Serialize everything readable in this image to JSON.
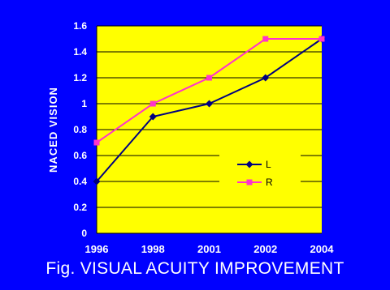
{
  "colors": {
    "background": "#0000ff",
    "plot_area": "#ffff00",
    "series_L": "#000080",
    "series_R": "#ff33cc",
    "text": "#ffffff"
  },
  "caption": "Fig. VISUAL ACUITY IMPROVEMENT",
  "chart_data": {
    "type": "line",
    "categories": [
      "1996",
      "1998",
      "2001",
      "2002",
      "2004"
    ],
    "series": [
      {
        "name": "L",
        "values": [
          0.4,
          0.9,
          1.0,
          1.2,
          1.5
        ],
        "marker": "diamond"
      },
      {
        "name": "R",
        "values": [
          0.7,
          1.0,
          1.2,
          1.5,
          1.5
        ],
        "marker": "square"
      }
    ],
    "title": "",
    "xlabel": "",
    "ylabel": "NACED VISION",
    "ylim": [
      0,
      1.6
    ],
    "yticks": [
      "0",
      "0.2",
      "0.4",
      "0.6",
      "0.8",
      "1",
      "1.2",
      "1.4",
      "1.6"
    ],
    "grid": true,
    "legend_position": "lower-right"
  }
}
